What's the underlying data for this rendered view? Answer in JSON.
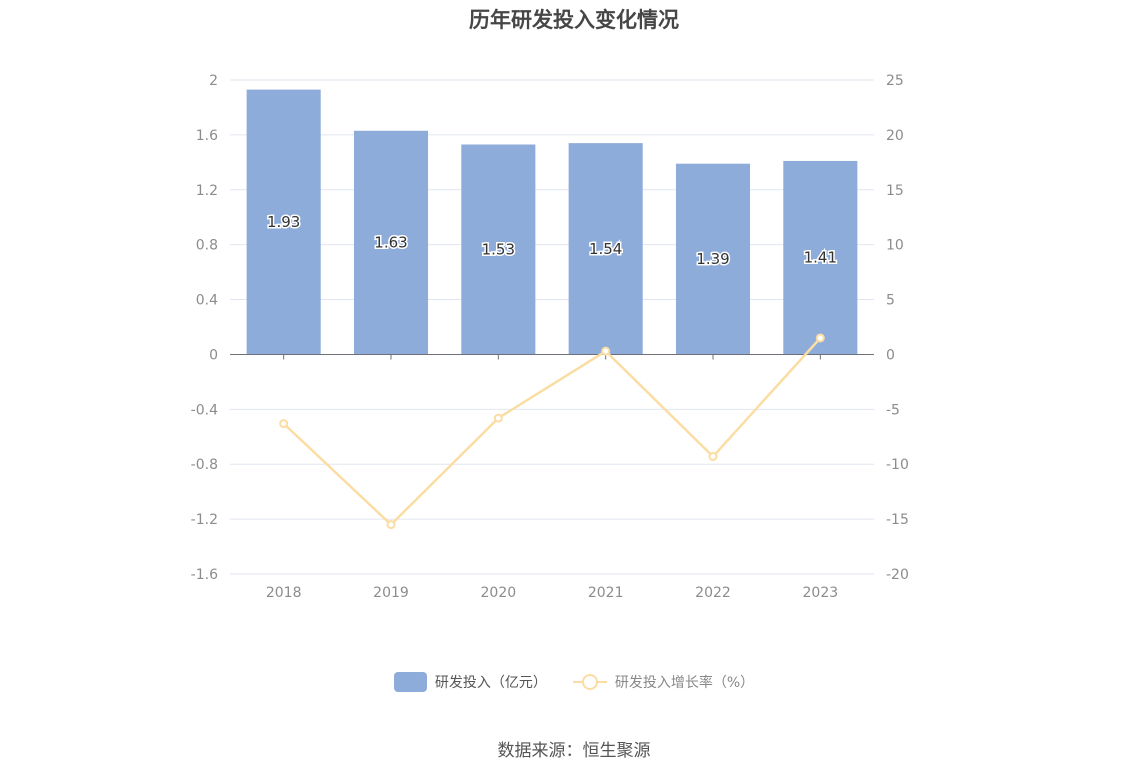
{
  "chart_data": {
    "type": "bar",
    "title": "历年研发投入变化情况",
    "categories": [
      "2018",
      "2019",
      "2020",
      "2021",
      "2022",
      "2023"
    ],
    "series": [
      {
        "name": "研发投入（亿元）",
        "type": "bar",
        "axis": "left",
        "values": [
          1.93,
          1.63,
          1.53,
          1.54,
          1.39,
          1.41
        ],
        "labels": [
          "1.93",
          "1.63",
          "1.53",
          "1.54",
          "1.39",
          "1.41"
        ]
      },
      {
        "name": "研发投入增长率（%）",
        "type": "line",
        "axis": "right",
        "values": [
          -6.3,
          -15.5,
          -5.8,
          0.3,
          -9.3,
          1.5
        ]
      }
    ],
    "y_left": {
      "min": -1.6,
      "max": 2,
      "ticks": [
        "2",
        "1.6",
        "1.2",
        "0.8",
        "0.4",
        "0",
        "-0.4",
        "-0.8",
        "-1.2",
        "-1.6"
      ]
    },
    "y_right": {
      "min": -20,
      "max": 25,
      "ticks": [
        "25",
        "20",
        "15",
        "10",
        "5",
        "0",
        "-5",
        "-10",
        "-15",
        "-20"
      ]
    },
    "grid": true,
    "legend_position": "bottom",
    "colors": {
      "bar": "#8eacda",
      "line": "#fbdda3",
      "grid": "#e0e6f1",
      "axis": "#6e7079"
    }
  },
  "source_text": "数据来源：恒生聚源"
}
